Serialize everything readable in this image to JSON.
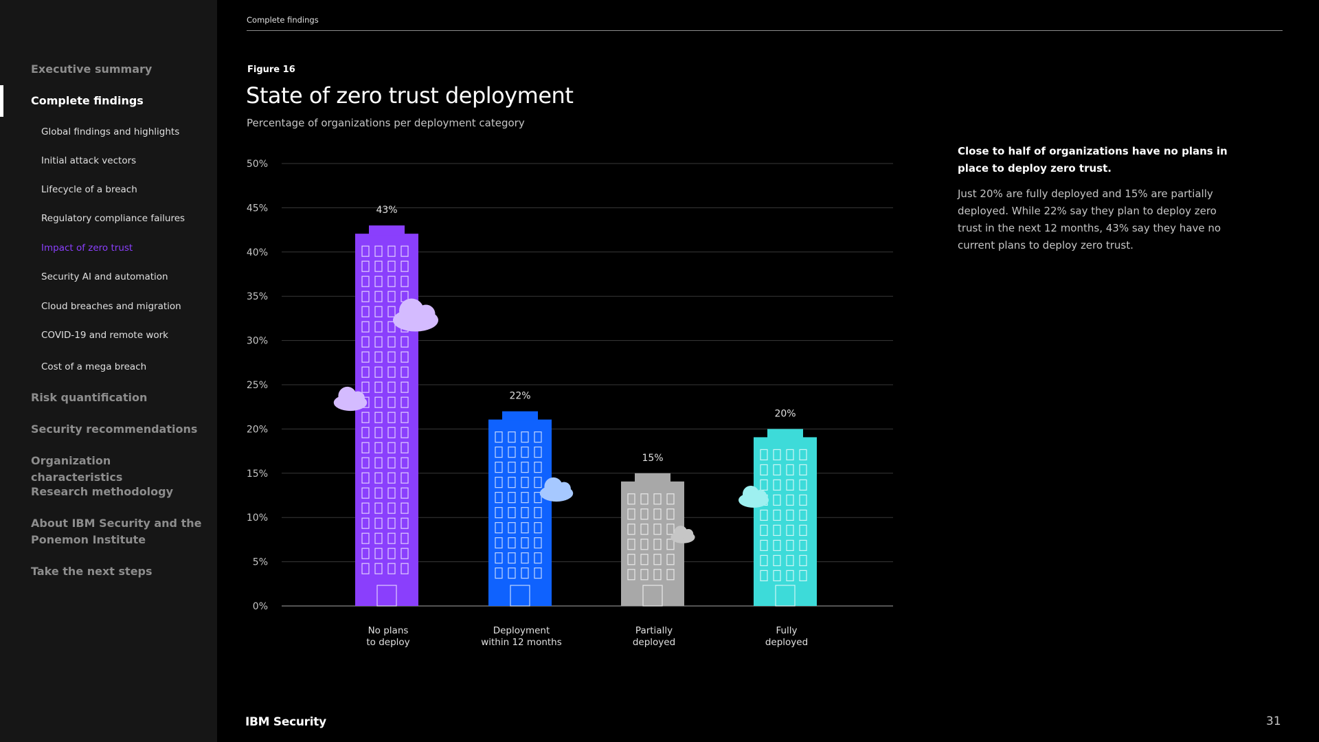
{
  "sidebar": {
    "items": [
      {
        "label": "Executive summary"
      },
      {
        "label": "Complete findings"
      },
      {
        "label": "Global findings and highlights"
      },
      {
        "label": "Initial attack vectors"
      },
      {
        "label": "Lifecycle of a breach"
      },
      {
        "label": "Regulatory compliance failures"
      },
      {
        "label": "Impact of zero trust"
      },
      {
        "label": "Security AI and automation"
      },
      {
        "label": "Cloud breaches and migration"
      },
      {
        "label": "COVID-19 and remote work"
      },
      {
        "label": "Cost of a mega breach"
      },
      {
        "label": "Risk quantification"
      },
      {
        "label": "Security recommendations"
      },
      {
        "label": "Organization characteristics"
      },
      {
        "label": "Research methodology"
      },
      {
        "label": "About IBM Security and the Ponemon Institute"
      },
      {
        "label": "Take the next steps"
      }
    ]
  },
  "header": {
    "breadcrumb": "Complete findings"
  },
  "figure": {
    "label": "Figure 16"
  },
  "insight": {
    "heading": "Close to half of organizations have no plans in place to deploy zero trust.",
    "body": "Just 20% are fully deployed and 15% are partially deployed. While 22% say they plan to deploy zero trust in the next 12 months, 43% say they have no current plans to deploy zero trust."
  },
  "footer": {
    "brand": "IBM Security",
    "page": "31"
  },
  "colors": {
    "no_plans": "#8a3ffc",
    "within_12": "#0f62fe",
    "partial": "#a8a8a8",
    "full": "#3ddbd9",
    "grid": "#393939"
  },
  "chart_data": {
    "type": "bar",
    "title": "State of zero trust deployment",
    "subtitle": "Percentage of organizations per deployment category",
    "categories": [
      [
        "No plans",
        "to deploy"
      ],
      [
        "Deployment",
        "within 12 months"
      ],
      [
        "Partially",
        "deployed"
      ],
      [
        "Fully",
        "deployed"
      ]
    ],
    "values": [
      43,
      22,
      15,
      20
    ],
    "value_labels": [
      "43%",
      "22%",
      "15%",
      "20%"
    ],
    "yticks": [
      "0%",
      "5%",
      "10%",
      "15%",
      "20%",
      "25%",
      "30%",
      "35%",
      "40%",
      "45%",
      "50%"
    ],
    "ylim": [
      0,
      50
    ],
    "ylabel": "",
    "xlabel": ""
  }
}
